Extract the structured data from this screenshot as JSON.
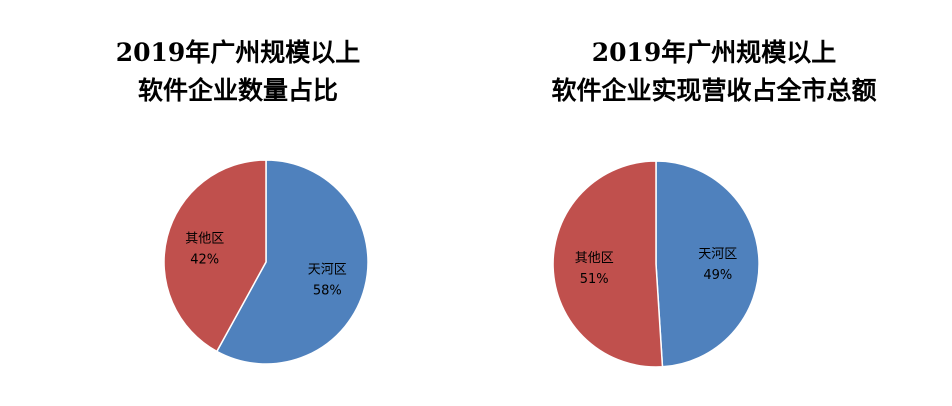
{
  "colors": {
    "tianhe": "#4f81bd",
    "other": "#c0504d",
    "edge": "#ffffff"
  },
  "chart_data": [
    {
      "type": "pie",
      "title_lines": [
        "2019年广州规模以上",
        "软件企业数量占比"
      ],
      "slices": [
        {
          "label": "天河区",
          "value": 58,
          "value_label": "58%",
          "color": "#4f81bd"
        },
        {
          "label": "其他区",
          "value": 42,
          "value_label": "42%",
          "color": "#c0504d"
        }
      ],
      "start": "12 o'clock",
      "direction": "clockwise",
      "legend": "none"
    },
    {
      "type": "pie",
      "title_lines": [
        "2019年广州规模以上",
        "软件企业实现营收占全市总额"
      ],
      "slices": [
        {
          "label": "天河区",
          "value": 49,
          "value_label": "49%",
          "color": "#4f81bd"
        },
        {
          "label": "其他区",
          "value": 51,
          "value_label": "51%",
          "color": "#c0504d"
        }
      ],
      "start": "12 o'clock",
      "direction": "clockwise",
      "legend": "none"
    }
  ]
}
